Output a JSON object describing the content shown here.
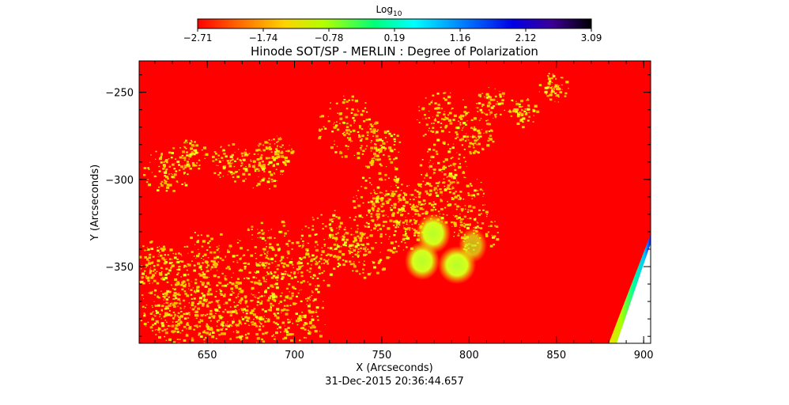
{
  "colorbar": {
    "label_main": "Log",
    "label_sub": "10",
    "ticks": [
      "-2.71",
      "-1.74",
      "-0.78",
      "0.19",
      "1.16",
      "2.12",
      "3.09"
    ],
    "colors": [
      "#ff0000",
      "#ff9600",
      "#ffff00",
      "#7fff00",
      "#00ff7f",
      "#00ffff",
      "#007fff",
      "#0000ff",
      "#3c0096",
      "#000000"
    ]
  },
  "chart_data": {
    "type": "heatmap",
    "title": "Hinode SOT/SP - MERLIN : Degree of Polarization",
    "xlabel": "X (Arcseconds)",
    "ylabel": "Y (Arcseconds)",
    "xlim": [
      611,
      904
    ],
    "ylim": [
      -394,
      -232
    ],
    "xticks": [
      650,
      700,
      750,
      800,
      850,
      900
    ],
    "yticks": [
      -250,
      -300,
      -350
    ],
    "colorscale_range": [
      -2.71,
      3.09
    ],
    "background_color": "#ff0000",
    "scale": "log10"
  },
  "footer": {
    "timestamp": "31-Dec-2015 20:36:44.657"
  }
}
